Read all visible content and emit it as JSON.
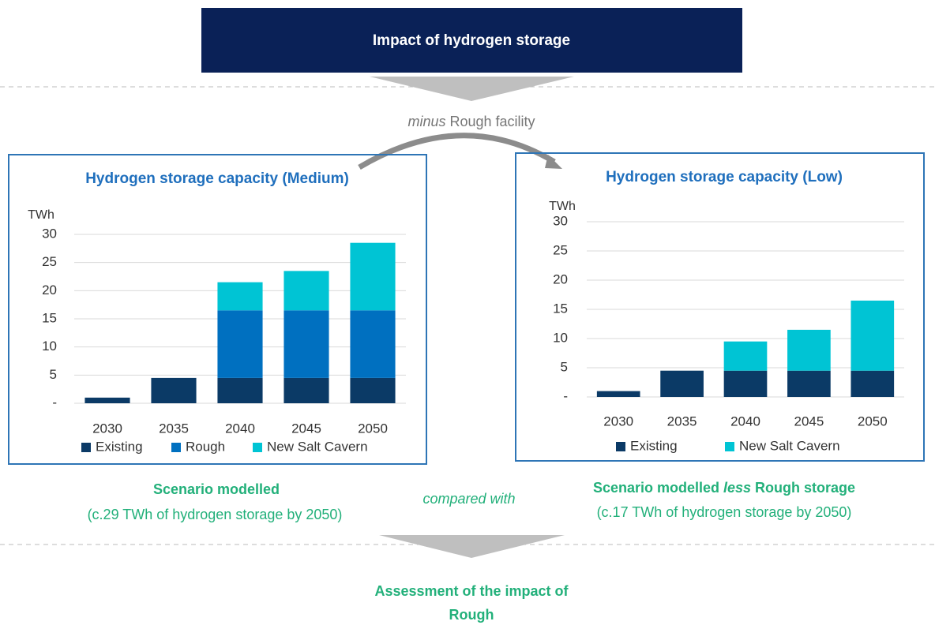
{
  "header": {
    "title": "Impact of hydrogen storage"
  },
  "transition": {
    "prefix": "minus",
    "text": " Rough facility"
  },
  "chart_data": [
    {
      "type": "bar",
      "stacked": true,
      "title": "Hydrogen storage capacity (Medium)",
      "y_label": "TWh",
      "categories": [
        "2030",
        "2035",
        "2040",
        "2045",
        "2050"
      ],
      "series": [
        {
          "name": "Existing",
          "color": "#0b3a66",
          "values": [
            1,
            4.5,
            4.5,
            4.5,
            4.5
          ]
        },
        {
          "name": "Rough",
          "color": "#0070c0",
          "values": [
            0,
            0,
            12,
            12,
            12
          ]
        },
        {
          "name": "New Salt Cavern",
          "color": "#00c4d4",
          "values": [
            0,
            0,
            5,
            7,
            12
          ]
        }
      ],
      "ylim": [
        0,
        30
      ],
      "yticks": [
        {
          "value": 0,
          "label": "-"
        },
        5,
        10,
        15,
        20,
        25,
        30
      ],
      "grid": true
    },
    {
      "type": "bar",
      "stacked": true,
      "title": "Hydrogen storage capacity (Low)",
      "y_label": "TWh",
      "categories": [
        "2030",
        "2035",
        "2040",
        "2045",
        "2050"
      ],
      "series": [
        {
          "name": "Existing",
          "color": "#0b3a66",
          "values": [
            1,
            4.5,
            4.5,
            4.5,
            4.5
          ]
        },
        {
          "name": "New Salt Cavern",
          "color": "#00c4d4",
          "values": [
            0,
            0,
            5,
            7,
            12
          ]
        }
      ],
      "ylim": [
        0,
        30
      ],
      "yticks": [
        {
          "value": 0,
          "label": "-"
        },
        5,
        10,
        15,
        20,
        25,
        30
      ],
      "grid": true
    }
  ],
  "captions": {
    "left": {
      "title": "Scenario modelled",
      "text": "(c.29 TWh of hydrogen storage by 2050)"
    },
    "middle": "compared with",
    "right": {
      "title_start": "Scenario modelled ",
      "title_italic": "less",
      "title_end": " Rough storage",
      "text": "(c.17 TWh of hydrogen storage by 2050)"
    }
  },
  "footer": {
    "line1": "Assessment of the impact of",
    "line2": "Rough"
  }
}
